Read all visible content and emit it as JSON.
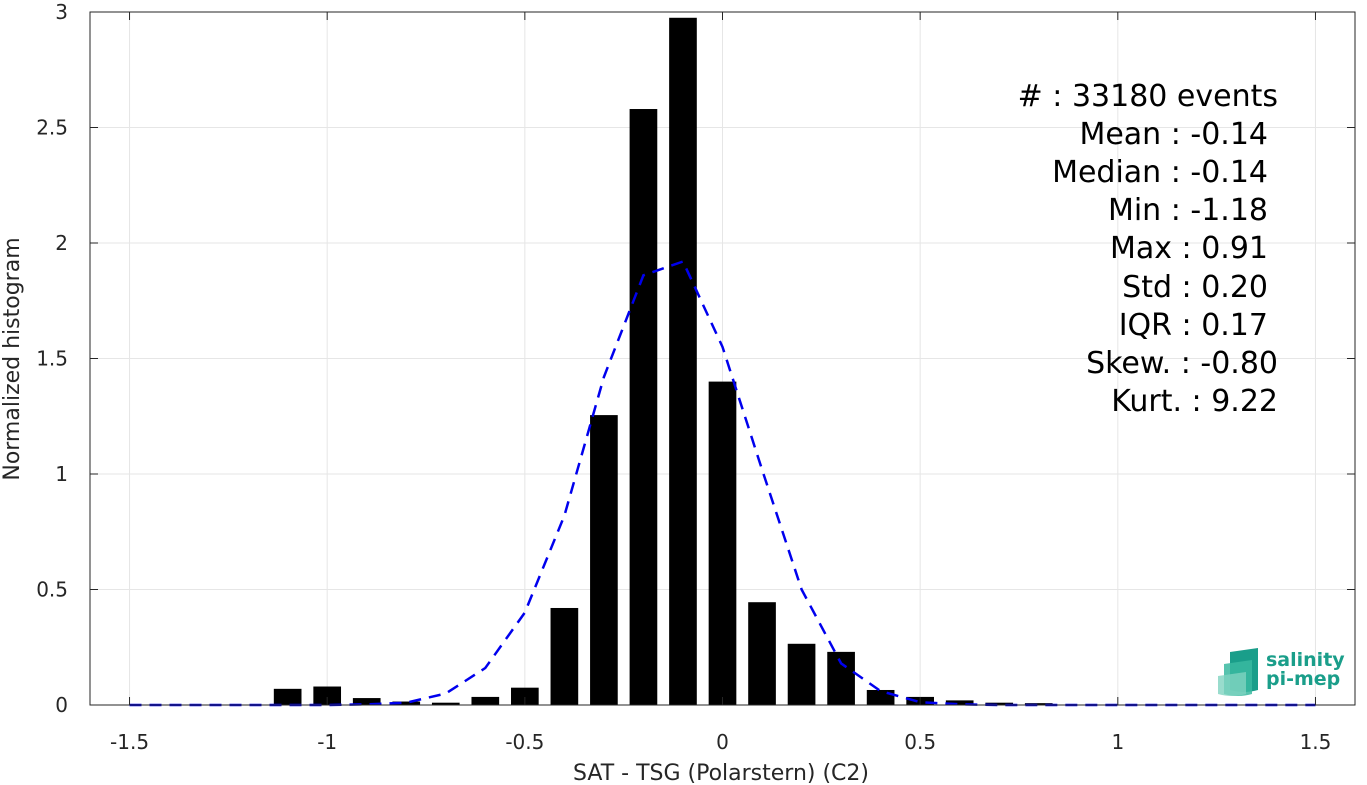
{
  "chart_data": {
    "type": "bar",
    "xlabel": "SAT - TSG (Polarstern) (C2)",
    "ylabel": "Normalized histogram",
    "xlim": [
      -1.6,
      1.6
    ],
    "ylim": [
      0,
      3
    ],
    "xticks": [
      -1.5,
      -1,
      -0.5,
      0,
      0.5,
      1,
      1.5
    ],
    "xtick_labels": [
      "-1.5",
      "-1",
      "-0.5",
      "0",
      "0.5",
      "1",
      "1.5"
    ],
    "yticks": [
      0,
      0.5,
      1,
      1.5,
      2,
      2.5,
      3
    ],
    "ytick_labels": [
      "0",
      "0.5",
      "1",
      "1.5",
      "2",
      "2.5",
      "3"
    ],
    "grid": true,
    "bar_color": "#000000",
    "bar_width": 0.07,
    "bars": {
      "x": [
        -1.1,
        -1.0,
        -0.9,
        -0.8,
        -0.7,
        -0.6,
        -0.5,
        -0.4,
        -0.3,
        -0.2,
        -0.1,
        0.0,
        0.1,
        0.2,
        0.3,
        0.4,
        0.5,
        0.6,
        0.7,
        0.8
      ],
      "values": [
        0.07,
        0.08,
        0.03,
        0.015,
        0.01,
        0.035,
        0.075,
        0.42,
        1.255,
        2.58,
        2.975,
        1.4,
        0.445,
        0.265,
        0.23,
        0.065,
        0.035,
        0.02,
        0.01,
        0.008
      ]
    },
    "fit_curve": {
      "style": "dashed",
      "color": "#0000ee",
      "x": [
        -1.5,
        -1.4,
        -1.3,
        -1.2,
        -1.1,
        -1.0,
        -0.9,
        -0.8,
        -0.7,
        -0.6,
        -0.5,
        -0.4,
        -0.3,
        -0.2,
        -0.1,
        0.0,
        0.1,
        0.2,
        0.3,
        0.4,
        0.5,
        0.6,
        0.7,
        0.8,
        0.9,
        1.0,
        1.1,
        1.2,
        1.3,
        1.4,
        1.5
      ],
      "y": [
        0,
        0,
        0,
        0,
        0,
        0,
        0.003,
        0.01,
        0.05,
        0.16,
        0.4,
        0.82,
        1.42,
        1.86,
        1.92,
        1.55,
        1.02,
        0.5,
        0.18,
        0.06,
        0.012,
        0.003,
        0,
        0,
        0,
        0,
        0,
        0,
        0,
        0,
        0
      ]
    },
    "stats": [
      "#  : 33180 events",
      "Mean : -0.14",
      "Median : -0.14",
      "Min : -1.18",
      "Max : 0.91",
      "Std : 0.20",
      "IQR : 0.17",
      "Skew. : -0.80",
      "Kurt. : 9.22"
    ]
  },
  "logo": {
    "line1": "salinity",
    "line2": "pi-mep",
    "color": "#1a9e8a"
  }
}
